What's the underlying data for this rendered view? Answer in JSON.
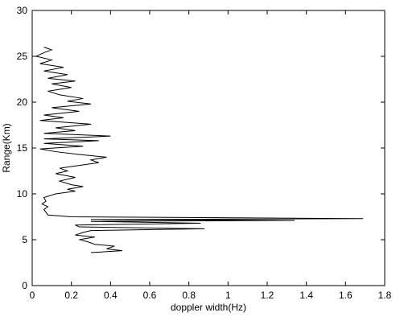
{
  "chart_data": {
    "type": "line",
    "x_label": "doppler width(Hz)",
    "y_label": "Range(Km)",
    "x": [
      0.3,
      0.46,
      0.38,
      0.42,
      0.32,
      0.28,
      0.24,
      0.32,
      0.22,
      0.26,
      0.3,
      0.88,
      0.24,
      0.22,
      0.86,
      0.3,
      1.34,
      0.3,
      1.69,
      0.2,
      0.08,
      0.07,
      0.06,
      0.08,
      0.05,
      0.07,
      0.06,
      0.12,
      0.22,
      0.18,
      0.26,
      0.2,
      0.14,
      0.22,
      0.12,
      0.18,
      0.14,
      0.24,
      0.34,
      0.3,
      0.38,
      0.24,
      0.12,
      0.04,
      0.26,
      0.06,
      0.34,
      0.06,
      0.4,
      0.06,
      0.22,
      0.12,
      0.3,
      0.04,
      0.16,
      0.06,
      0.24,
      0.1,
      0.3,
      0.18,
      0.26,
      0.14,
      0.08,
      0.2,
      0.1,
      0.22,
      0.08,
      0.18,
      0.06,
      0.16,
      0.04,
      0.1,
      0.02,
      0.06,
      0.1,
      0.06
    ],
    "series": [
      {
        "color": "#000000",
        "values": [
          3.6,
          3.8,
          4.0,
          4.3,
          4.5,
          4.8,
          5.0,
          5.3,
          5.5,
          5.8,
          6.0,
          6.2,
          6.4,
          6.6,
          6.8,
          7.0,
          7.1,
          7.2,
          7.3,
          7.5,
          7.7,
          8.0,
          8.3,
          8.6,
          8.9,
          9.2,
          9.6,
          10.0,
          10.3,
          10.5,
          10.8,
          11.0,
          11.4,
          11.8,
          12.2,
          12.5,
          12.8,
          13.1,
          13.4,
          13.7,
          14.0,
          14.3,
          14.6,
          14.9,
          15.2,
          15.5,
          15.8,
          16.0,
          16.3,
          16.6,
          16.9,
          17.2,
          17.6,
          18.0,
          18.3,
          18.6,
          19.0,
          19.4,
          19.8,
          20.1,
          20.4,
          20.8,
          21.2,
          21.6,
          22.0,
          22.3,
          22.6,
          23.0,
          23.4,
          23.8,
          24.2,
          24.6,
          25.0,
          25.4,
          25.7,
          26.0
        ]
      }
    ],
    "xlim": [
      0,
      1.8
    ],
    "xticks": [
      0,
      0.2,
      0.4,
      0.6,
      0.8,
      1,
      1.2,
      1.4,
      1.6,
      1.8
    ],
    "ylim": [
      0,
      30
    ],
    "yticks": [
      0,
      5,
      10,
      15,
      20,
      25,
      30
    ],
    "grid": false
  }
}
